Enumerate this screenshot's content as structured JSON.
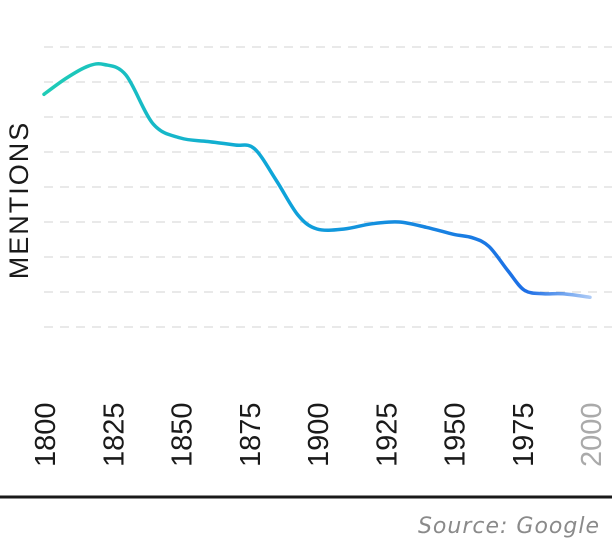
{
  "chart_data": {
    "type": "line",
    "title": "",
    "xlabel": "",
    "ylabel": "MENTIONS",
    "source": "Source: Google",
    "grid": true,
    "x_ticks": [
      "1800",
      "1825",
      "1850",
      "1875",
      "1900",
      "1925",
      "1950",
      "1975",
      "2000"
    ],
    "x_tick_faded": [
      false,
      false,
      false,
      false,
      false,
      false,
      false,
      false,
      true
    ],
    "xlim": [
      1800,
      2000
    ],
    "ylim": [
      0,
      9
    ],
    "series": [
      {
        "x": [
          1800,
          1808,
          1816,
          1822,
          1830,
          1840,
          1850,
          1860,
          1870,
          1877,
          1885,
          1893,
          1900,
          1910,
          1920,
          1930,
          1940,
          1950,
          1957,
          1963,
          1970,
          1976,
          1983,
          1990,
          2000
        ],
        "values": [
          7.65,
          8.1,
          8.45,
          8.5,
          8.2,
          6.8,
          6.4,
          6.3,
          6.2,
          6.1,
          5.2,
          4.2,
          3.8,
          3.8,
          3.95,
          4.0,
          3.85,
          3.65,
          3.55,
          3.3,
          2.6,
          2.05,
          1.95,
          1.95,
          1.85
        ],
        "color_start": "#22d3b0",
        "color_mid": "#0ea5d9",
        "color_end": "#1d6fe6"
      }
    ]
  },
  "colors": {
    "axis": "#1a1a1a",
    "grid": "#e2e2e2",
    "faded_tick": "#aaaaaa",
    "source_text": "#8a8a8a"
  }
}
